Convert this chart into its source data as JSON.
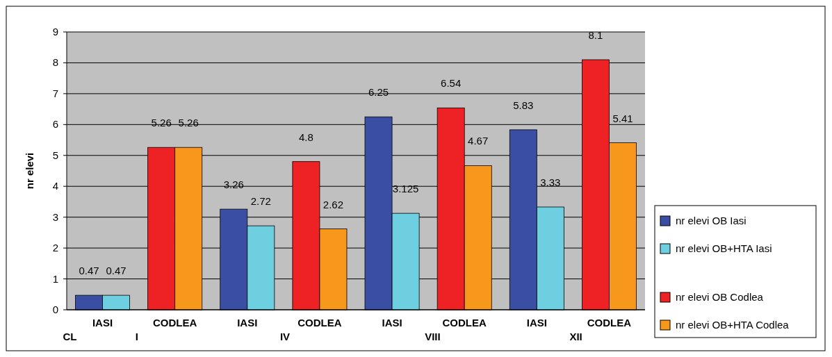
{
  "chart_data": {
    "type": "bar",
    "ylabel": "nr elevi",
    "categories": [
      "IASI\nCL",
      "CODLEA\nI",
      "IASI",
      "CODLEA\nIV",
      "IASI",
      "CODLEA\nVIII",
      "IASI",
      "CODLEA\nXII"
    ],
    "series": [
      {
        "name": "nr elevi OB Iasi",
        "color": "#3a4fa3",
        "values": [
          0.47,
          null,
          3.26,
          null,
          6.25,
          null,
          5.83,
          null
        ]
      },
      {
        "name": "nr elevi OB+HTA Iasi",
        "color": "#6ecfe0",
        "values": [
          0.47,
          null,
          2.72,
          null,
          3.125,
          null,
          3.33,
          null
        ]
      },
      {
        "name": "nr elevi OB Codlea",
        "color": "#ee2224",
        "values": [
          null,
          5.26,
          null,
          4.8,
          null,
          6.54,
          null,
          8.1
        ]
      },
      {
        "name": "nr elevi OB+HTA Codlea",
        "color": "#f7981d",
        "values": [
          null,
          5.26,
          null,
          2.62,
          null,
          4.67,
          null,
          5.41
        ]
      }
    ],
    "ylim": [
      0,
      9
    ],
    "yticks": [
      0,
      1,
      2,
      3,
      4,
      5,
      6,
      7,
      8,
      9
    ],
    "grid": "y",
    "data_labels": true,
    "legend": "right"
  }
}
